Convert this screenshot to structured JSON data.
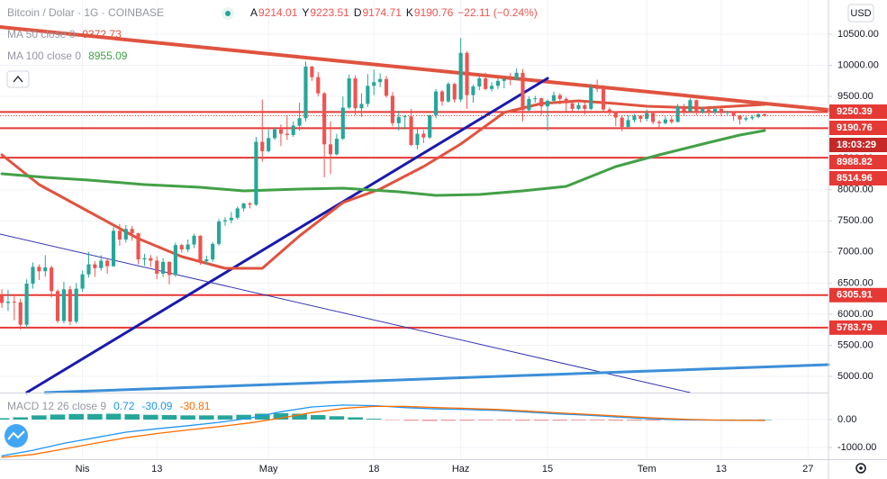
{
  "chart_data": [
    {
      "type": "candlestick",
      "title": "Bitcoin / Dolar · 1G · COINBASE",
      "ohlc": [
        {
          "label": "A",
          "value": "9214.01"
        },
        {
          "label": "Y",
          "value": "9223.51"
        },
        {
          "label": "D",
          "value": "9174.71"
        },
        {
          "label": "K",
          "value": "9190.76"
        }
      ],
      "change": "−22.11 (−0.24%)",
      "currency": "USD",
      "up_color": "#26a69a",
      "down_color": "#ef5350",
      "xlim": [
        -0.3,
        133.3
      ],
      "xticks": [
        {
          "value": 13,
          "label": "Nis"
        },
        {
          "value": 25,
          "label": "13"
        },
        {
          "value": 43,
          "label": "May"
        },
        {
          "value": 60,
          "label": "18"
        },
        {
          "value": 74,
          "label": "Haz"
        },
        {
          "value": 88,
          "label": "15"
        },
        {
          "value": 104,
          "label": "Tem"
        },
        {
          "value": 116,
          "label": "13"
        },
        {
          "value": 130,
          "label": "27"
        }
      ],
      "ylim": [
        4739.5,
        11050
      ],
      "yticks": [
        {
          "value": 5000,
          "label": "5000.00"
        },
        {
          "value": 5500,
          "label": "5500.00"
        },
        {
          "value": 6000,
          "label": "6000.00"
        },
        {
          "value": 6500,
          "label": "6500.00"
        },
        {
          "value": 7000,
          "label": "7000.00"
        },
        {
          "value": 7500,
          "label": "7500.00"
        },
        {
          "value": 8000,
          "label": "8000.00"
        },
        {
          "value": 8500,
          "label": "8500.00"
        },
        {
          "value": 9000,
          "label": "9000.00"
        },
        {
          "value": 9500,
          "label": "9500.00"
        },
        {
          "value": 10000,
          "label": "10000.00"
        },
        {
          "value": 10500,
          "label": "10500.00"
        }
      ],
      "grid": true,
      "levels": [
        9250.39,
        8988.82,
        8514.96,
        6305.91,
        5783.79
      ],
      "level_color": "#e53935",
      "last_price": 9190.76,
      "countdown": "18:03:29",
      "candles": [
        [
          6300,
          6400,
          6100,
          6180
        ],
        [
          6180,
          6390,
          6050,
          6200
        ],
        [
          6200,
          6300,
          5900,
          6190
        ],
        [
          6190,
          6250,
          5750,
          5830
        ],
        [
          5830,
          6560,
          5780,
          6490
        ],
        [
          6490,
          6830,
          6410,
          6760
        ],
        [
          6760,
          6800,
          6550,
          6690
        ],
        [
          6690,
          6950,
          6600,
          6750
        ],
        [
          6750,
          6780,
          6270,
          6370
        ],
        [
          6370,
          6400,
          5860,
          5890
        ],
        [
          5890,
          6520,
          5850,
          6400
        ],
        [
          6400,
          6450,
          5820,
          5880
        ],
        [
          5880,
          6500,
          5850,
          6410
        ],
        [
          6410,
          6700,
          6360,
          6640
        ],
        [
          6640,
          7000,
          6590,
          6800
        ],
        [
          6800,
          6850,
          6600,
          6740
        ],
        [
          6740,
          6950,
          6700,
          6860
        ],
        [
          6860,
          6900,
          6650,
          6770
        ],
        [
          6770,
          7400,
          6760,
          7340
        ],
        [
          7340,
          7450,
          7100,
          7200
        ],
        [
          7200,
          7430,
          7150,
          7370
        ],
        [
          7370,
          7420,
          7180,
          7300
        ],
        [
          7300,
          7310,
          6800,
          6880
        ],
        [
          6880,
          6970,
          6780,
          6900
        ],
        [
          6900,
          6950,
          6760,
          6860
        ],
        [
          6860,
          6930,
          6560,
          6650
        ],
        [
          6650,
          6900,
          6600,
          6840
        ],
        [
          6840,
          6850,
          6480,
          6630
        ],
        [
          6630,
          7150,
          6600,
          7110
        ],
        [
          7110,
          7130,
          6990,
          7040
        ],
        [
          7040,
          7200,
          7000,
          7120
        ],
        [
          7120,
          7290,
          7060,
          7260
        ],
        [
          7260,
          7270,
          6790,
          6850
        ],
        [
          6850,
          6940,
          6800,
          6880
        ],
        [
          6880,
          7160,
          6840,
          7130
        ],
        [
          7130,
          7530,
          7100,
          7490
        ],
        [
          7490,
          7560,
          7420,
          7510
        ],
        [
          7510,
          7640,
          7460,
          7550
        ],
        [
          7550,
          7730,
          7520,
          7700
        ],
        [
          7700,
          7790,
          7650,
          7780
        ],
        [
          7780,
          7800,
          7700,
          7760
        ],
        [
          7760,
          8850,
          7740,
          8770
        ],
        [
          8770,
          9450,
          8450,
          8620
        ],
        [
          8620,
          8970,
          8600,
          8830
        ],
        [
          8830,
          9000,
          8800,
          8970
        ],
        [
          8970,
          9050,
          8700,
          8900
        ],
        [
          8900,
          9200,
          8800,
          8880
        ],
        [
          8880,
          9100,
          8850,
          9030
        ],
        [
          9030,
          9400,
          8950,
          9150
        ],
        [
          9150,
          10060,
          9100,
          9980
        ],
        [
          9980,
          9990,
          9750,
          9810
        ],
        [
          9810,
          9890,
          9500,
          9550
        ],
        [
          9550,
          9570,
          8200,
          8730
        ],
        [
          8730,
          9100,
          8250,
          8570
        ],
        [
          8570,
          8900,
          8550,
          8820
        ],
        [
          8820,
          9500,
          8800,
          9320
        ],
        [
          9320,
          9850,
          9300,
          9790
        ],
        [
          9790,
          9840,
          9200,
          9310
        ],
        [
          9310,
          9550,
          9170,
          9380
        ],
        [
          9380,
          9860,
          9330,
          9670
        ],
        [
          9670,
          9930,
          9520,
          9730
        ],
        [
          9730,
          9870,
          9650,
          9780
        ],
        [
          9780,
          9830,
          9480,
          9510
        ],
        [
          9510,
          9570,
          9020,
          9070
        ],
        [
          9070,
          9270,
          8950,
          9170
        ],
        [
          9170,
          9200,
          8970,
          9180
        ],
        [
          9180,
          9300,
          8700,
          8720
        ],
        [
          8720,
          8990,
          8650,
          8900
        ],
        [
          8900,
          8960,
          8750,
          8840
        ],
        [
          8840,
          9200,
          8820,
          9200
        ],
        [
          9200,
          9620,
          9150,
          9580
        ],
        [
          9580,
          9600,
          9350,
          9420
        ],
        [
          9420,
          9730,
          9400,
          9700
        ],
        [
          9700,
          9720,
          9400,
          9450
        ],
        [
          9450,
          10440,
          9410,
          10200
        ],
        [
          10200,
          10230,
          9300,
          9520
        ],
        [
          9520,
          9690,
          9400,
          9660
        ],
        [
          9660,
          9850,
          9600,
          9790
        ],
        [
          9790,
          9880,
          9600,
          9620
        ],
        [
          9620,
          9730,
          9580,
          9670
        ],
        [
          9670,
          9790,
          9620,
          9750
        ],
        [
          9750,
          9800,
          9630,
          9780
        ],
        [
          9780,
          9880,
          9680,
          9770
        ],
        [
          9770,
          9950,
          9760,
          9880
        ],
        [
          9880,
          9940,
          9100,
          9280
        ],
        [
          9280,
          9500,
          9250,
          9460
        ],
        [
          9460,
          9510,
          9400,
          9470
        ],
        [
          9470,
          9480,
          9200,
          9340
        ],
        [
          9340,
          9450,
          8950,
          9430
        ],
        [
          9430,
          9580,
          9380,
          9520
        ],
        [
          9520,
          9550,
          9370,
          9460
        ],
        [
          9460,
          9490,
          9260,
          9390
        ],
        [
          9390,
          9430,
          9250,
          9300
        ],
        [
          9300,
          9400,
          9280,
          9360
        ],
        [
          9360,
          9400,
          9210,
          9300
        ],
        [
          9300,
          9700,
          9280,
          9650
        ],
        [
          9650,
          9770,
          9570,
          9620
        ],
        [
          9620,
          9680,
          9250,
          9290
        ],
        [
          9290,
          9320,
          9200,
          9250
        ],
        [
          9250,
          9260,
          9020,
          9160
        ],
        [
          9160,
          9200,
          8940,
          9010
        ],
        [
          9010,
          9200,
          8990,
          9120
        ],
        [
          9120,
          9220,
          9080,
          9190
        ],
        [
          9190,
          9200,
          9080,
          9140
        ],
        [
          9140,
          9290,
          9100,
          9230
        ],
        [
          9230,
          9260,
          9050,
          9090
        ],
        [
          9090,
          9120,
          9000,
          9070
        ],
        [
          9070,
          9180,
          9050,
          9130
        ],
        [
          9130,
          9180,
          9060,
          9090
        ],
        [
          9090,
          9380,
          9080,
          9340
        ],
        [
          9340,
          9380,
          9200,
          9260
        ],
        [
          9260,
          9470,
          9240,
          9440
        ],
        [
          9440,
          9450,
          9200,
          9240
        ],
        [
          9240,
          9330,
          9220,
          9290
        ],
        [
          9290,
          9330,
          9200,
          9240
        ],
        [
          9240,
          9320,
          9210,
          9300
        ],
        [
          9300,
          9310,
          9180,
          9250
        ],
        [
          9250,
          9270,
          9200,
          9250
        ],
        [
          9250,
          9260,
          9110,
          9190
        ],
        [
          9190,
          9200,
          9050,
          9130
        ],
        [
          9130,
          9180,
          9100,
          9150
        ],
        [
          9150,
          9200,
          9120,
          9170
        ],
        [
          9170,
          9230,
          9150,
          9212
        ],
        [
          9214.01,
          9223.51,
          9174.71,
          9190.76
        ]
      ],
      "series": [
        {
          "name": "MA 50 close 0",
          "color": "#e0533f",
          "last": 9372.73,
          "x": [
            0,
            6,
            14,
            22,
            29,
            36,
            42,
            48,
            55,
            61,
            68,
            74,
            81,
            87,
            93,
            99,
            104,
            113,
            123
          ],
          "values": [
            8561,
            8083,
            7649,
            7214,
            6925,
            6737,
            6737,
            7258,
            7793,
            8010,
            8372,
            8734,
            9241,
            9386,
            9429,
            9386,
            9342,
            9313,
            9371
          ]
        },
        {
          "name": "MA 100 close 0",
          "color": "#43a047",
          "last": 8955.09,
          "x": [
            0,
            7,
            14,
            23,
            32,
            39,
            48,
            55,
            64,
            70,
            77,
            84,
            91,
            99,
            106,
            113,
            119,
            123
          ],
          "values": [
            8257,
            8199,
            8155,
            8083,
            8039,
            7982,
            8011,
            8025,
            7967,
            7909,
            7924,
            7982,
            8054,
            8372,
            8561,
            8734,
            8879,
            8951
          ]
        }
      ],
      "drawings": [
        {
          "color": "#e0533f",
          "width": 4,
          "x": [
            -0.3,
            133.3
          ],
          "values": [
            10616,
            9284
          ]
        },
        {
          "color": "#1a1aad",
          "width": 3,
          "x": [
            4,
            88
          ],
          "values": [
            4740,
            9791
          ]
        },
        {
          "color": "#3636b0",
          "width": 1,
          "x": [
            -0.3,
            111
          ],
          "values": [
            7287,
            4740
          ]
        },
        {
          "color": "#3d8fd8",
          "width": 3,
          "x": [
            7,
            133.3
          ],
          "values": [
            4740,
            5188
          ]
        }
      ]
    },
    {
      "type": "macd",
      "name": "MACD 12 26 close 9",
      "xlim": [
        -0.3,
        133.3
      ],
      "ylim": [
        -1419,
        903
      ],
      "yticks": [
        {
          "value": 0,
          "label": "0.00"
        },
        {
          "value": -1000,
          "label": "-1000.00"
        }
      ],
      "histogram": {
        "up_color": "#26a69a",
        "down_color": "#ef9a9a",
        "last": 0.72,
        "x": [
          0,
          3,
          6,
          9,
          12,
          15,
          18,
          21,
          24,
          27,
          30,
          33,
          36,
          39,
          42,
          45,
          48,
          51,
          54,
          57,
          60,
          63,
          66,
          69,
          72,
          75,
          78,
          81,
          84,
          87,
          90,
          93,
          96,
          99,
          102,
          105,
          108,
          111,
          114,
          117,
          120,
          123
        ],
        "values": [
          50,
          80,
          150,
          180,
          200,
          200,
          210,
          190,
          170,
          160,
          150,
          150,
          150,
          170,
          210,
          230,
          210,
          160,
          120,
          80,
          30,
          -20,
          -40,
          -50,
          -40,
          -40,
          -30,
          -30,
          -40,
          -40,
          -40,
          -30,
          -30,
          -40,
          -40,
          -40,
          -20,
          -20,
          -5,
          5,
          2,
          0.72
        ]
      },
      "series": [
        {
          "color": "#2196f3",
          "last": -30.09,
          "x": [
            0,
            5,
            10,
            15,
            20,
            25,
            30,
            35,
            40,
            45,
            50,
            55,
            60,
            65,
            70,
            75,
            80,
            85,
            90,
            95,
            100,
            105,
            110,
            115,
            120,
            123
          ],
          "values": [
            -1300,
            -1100,
            -850,
            -650,
            -450,
            -330,
            -220,
            -100,
            50,
            280,
            450,
            520,
            500,
            430,
            380,
            360,
            330,
            260,
            200,
            150,
            80,
            20,
            -10,
            -20,
            -30,
            -30.09
          ]
        },
        {
          "color": "#ff6d00",
          "last": -30.81,
          "x": [
            0,
            5,
            10,
            15,
            20,
            25,
            30,
            35,
            40,
            45,
            50,
            55,
            60,
            65,
            70,
            75,
            80,
            85,
            90,
            95,
            100,
            105,
            110,
            115,
            120,
            123
          ],
          "values": [
            -1350,
            -1250,
            -1050,
            -850,
            -650,
            -500,
            -370,
            -250,
            -120,
            50,
            250,
            400,
            470,
            470,
            430,
            400,
            360,
            300,
            240,
            180,
            120,
            60,
            10,
            -15,
            -28,
            -30.81
          ]
        }
      ]
    }
  ]
}
